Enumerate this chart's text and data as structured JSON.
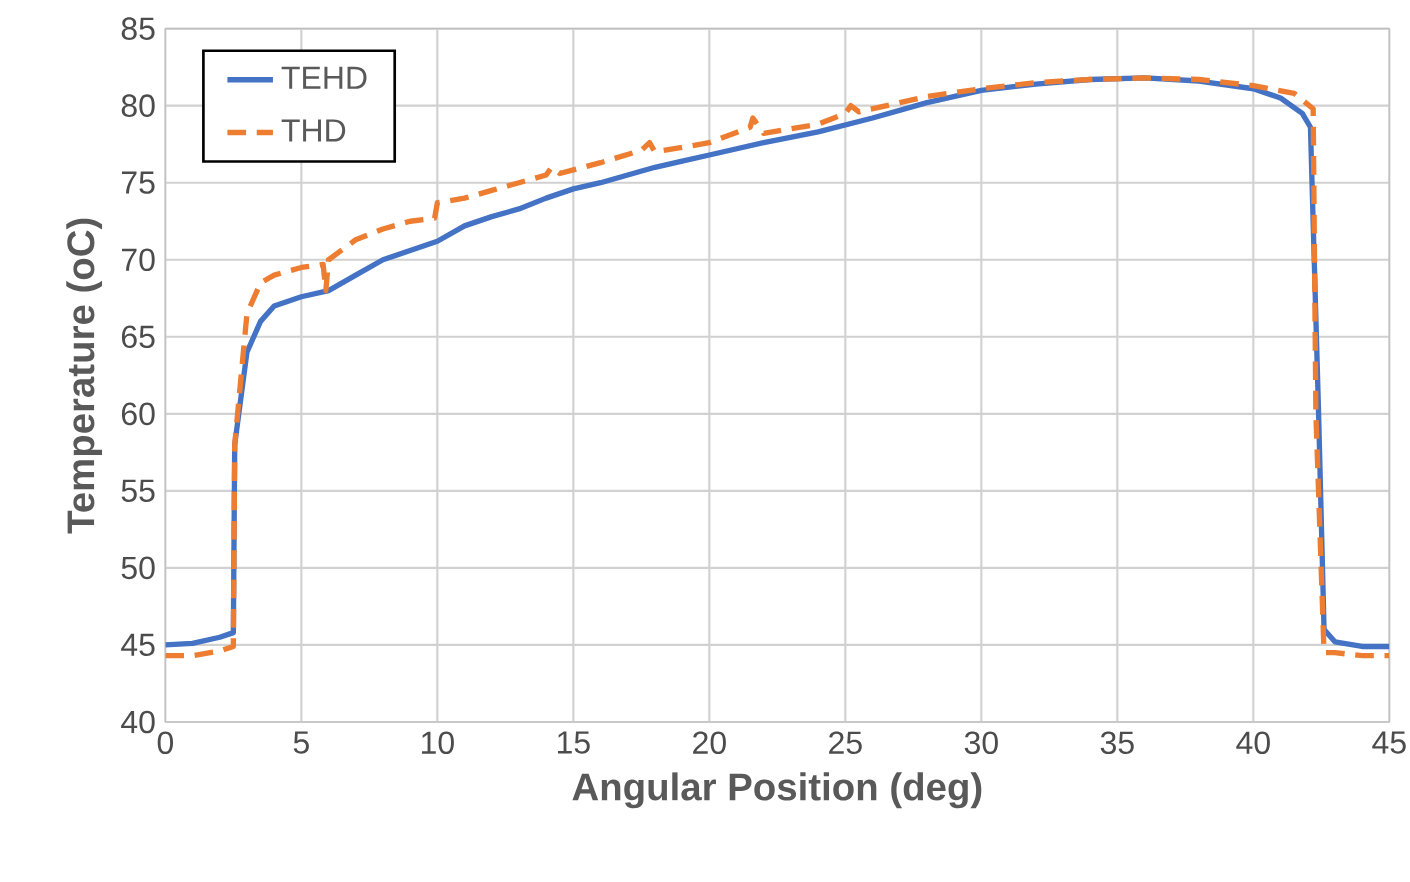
{
  "chart_data": {
    "type": "line",
    "xlabel": "Angular Position (deg)",
    "ylabel": "Temperature (oC)",
    "xlim": [
      0,
      45
    ],
    "ylim": [
      40,
      85
    ],
    "xticks": [
      0,
      5,
      10,
      15,
      20,
      25,
      30,
      35,
      40,
      45
    ],
    "yticks": [
      40,
      45,
      50,
      55,
      60,
      65,
      70,
      75,
      80,
      85
    ],
    "grid": true,
    "legend": "top left",
    "marker": "none",
    "series": [
      {
        "name": "TEHD",
        "color": "#4472c4",
        "line_style": "solid",
        "x": [
          0,
          1,
          2,
          2.5,
          2.55,
          3,
          3.5,
          4,
          5,
          6,
          7,
          8,
          9,
          10,
          11,
          12,
          13,
          14,
          15,
          16,
          17,
          18,
          19,
          20,
          22,
          24,
          26,
          28,
          30,
          32,
          34,
          36,
          38,
          40,
          41,
          41.8,
          42.1,
          42.4,
          42.6,
          43,
          44,
          45
        ],
        "values": [
          45,
          45.1,
          45.5,
          45.8,
          58,
          64,
          66,
          67,
          67.6,
          68,
          69,
          70,
          70.6,
          71.2,
          72.2,
          72.8,
          73.3,
          74,
          74.6,
          75,
          75.5,
          76,
          76.4,
          76.8,
          77.6,
          78.3,
          79.2,
          80.2,
          81,
          81.4,
          81.7,
          81.8,
          81.6,
          81.1,
          80.5,
          79.5,
          78.6,
          60,
          46,
          45.2,
          44.9,
          44.9
        ]
      },
      {
        "name": "THD",
        "color": "#ed7d31",
        "line_style": "dashed",
        "x": [
          0,
          1,
          2,
          2.5,
          2.55,
          3,
          3.5,
          4,
          5,
          5.8,
          5.9,
          6,
          7,
          8,
          9,
          9.9,
          10,
          11,
          12,
          13,
          14,
          14.2,
          14.5,
          16,
          17.5,
          17.8,
          18,
          20,
          21.5,
          21.6,
          22,
          24,
          25,
          25.2,
          25.5,
          27,
          28,
          30,
          32,
          34,
          36,
          38,
          40,
          41.5,
          42.2,
          42.3,
          42.6,
          43,
          44,
          45
        ],
        "values": [
          44.3,
          44.3,
          44.6,
          44.9,
          58,
          66.5,
          68.5,
          69,
          69.5,
          69.7,
          68,
          70,
          71.3,
          72,
          72.5,
          72.7,
          73.7,
          74,
          74.5,
          75,
          75.5,
          76,
          75.6,
          76.3,
          77.1,
          77.6,
          77,
          77.6,
          78.6,
          79.2,
          78.2,
          78.8,
          79.5,
          80,
          79.6,
          80.2,
          80.6,
          81.1,
          81.5,
          81.7,
          81.8,
          81.7,
          81.3,
          80.8,
          79.8,
          60,
          44.5,
          44.5,
          44.3,
          44.3
        ]
      }
    ]
  }
}
